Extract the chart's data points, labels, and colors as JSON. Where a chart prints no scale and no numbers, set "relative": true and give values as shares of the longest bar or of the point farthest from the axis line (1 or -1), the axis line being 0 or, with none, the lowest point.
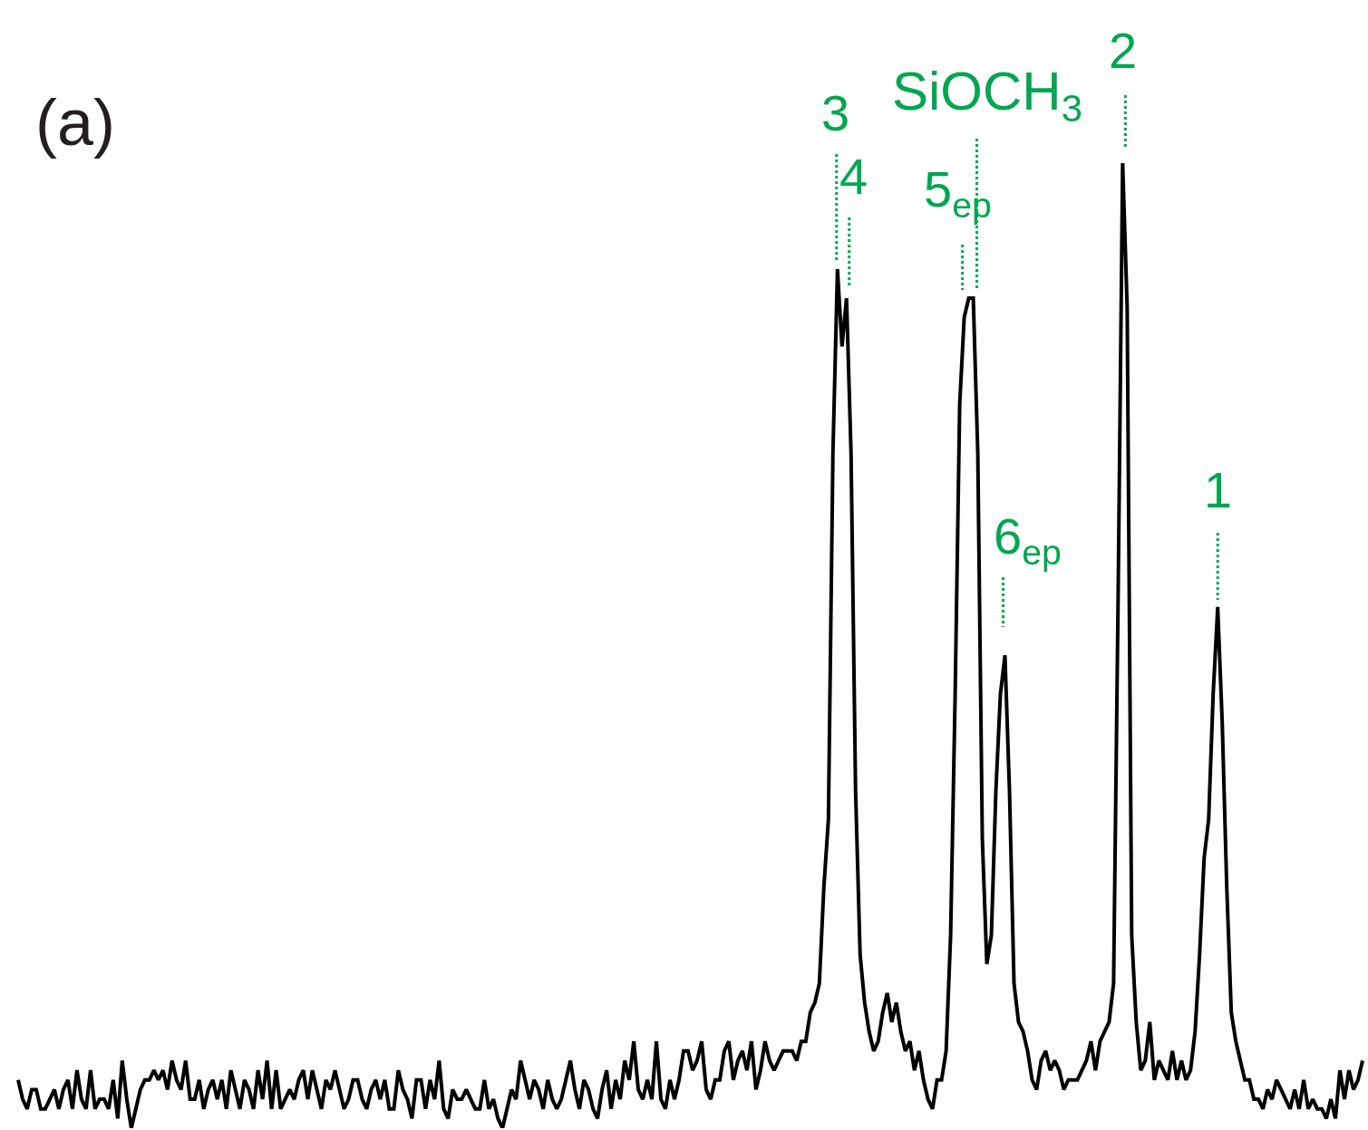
{
  "chart_data": {
    "type": "line",
    "relative": true,
    "categories": [
      null,
      null,
      null,
      null,
      null,
      null,
      null,
      null,
      null,
      null,
      null,
      null,
      null,
      null,
      null,
      null,
      null,
      null,
      null,
      null,
      null,
      null,
      null,
      null,
      null,
      null,
      null,
      null,
      null,
      null,
      null,
      null,
      null,
      null,
      null,
      null,
      null,
      null,
      null,
      null,
      null,
      null,
      null,
      null,
      null,
      null,
      null,
      null,
      null,
      null,
      null,
      null,
      null,
      null,
      null,
      null,
      null,
      null,
      null,
      null,
      null,
      null,
      null,
      null,
      null,
      null,
      null,
      null,
      null,
      null,
      null,
      null,
      null,
      null,
      null,
      null,
      null,
      null,
      null,
      null,
      null,
      null,
      null,
      null,
      null,
      null,
      null,
      null,
      null,
      null,
      null,
      null,
      null,
      null,
      null,
      null,
      null,
      null,
      null,
      null,
      null,
      null,
      null,
      null,
      null,
      null,
      null,
      null,
      null,
      null,
      null,
      null,
      null,
      null,
      null,
      null,
      null,
      null,
      null,
      null,
      null,
      null,
      null,
      null,
      null,
      null,
      null,
      null,
      null,
      null,
      null,
      null,
      null,
      null,
      null,
      null,
      null,
      null,
      null,
      null,
      null,
      null,
      null,
      null,
      null,
      null,
      null,
      null,
      null,
      null,
      null,
      null,
      null,
      null,
      null,
      null,
      null,
      null,
      null,
      null,
      null,
      null,
      null,
      null,
      null,
      null,
      null,
      null,
      null,
      null,
      null,
      null,
      null,
      null,
      null,
      null,
      null,
      null,
      null,
      null,
      null,
      null,
      null,
      null,
      null,
      null,
      null,
      null,
      null,
      null,
      null,
      null,
      null,
      null,
      null,
      null,
      null,
      null,
      null,
      null,
      null,
      null,
      null,
      null,
      null,
      null,
      null,
      null,
      null,
      null,
      null,
      null,
      null,
      null,
      null,
      null,
      null,
      null,
      null,
      null,
      null,
      null,
      null,
      null,
      null,
      null,
      null,
      null,
      null,
      null,
      null,
      null,
      null,
      null,
      null,
      null,
      null,
      null,
      null,
      null,
      null,
      null,
      null,
      null,
      null,
      null,
      null,
      null,
      null,
      null,
      null,
      null,
      null,
      null,
      null,
      null,
      null,
      null,
      null,
      null,
      null,
      null,
      null,
      null,
      null,
      null,
      null,
      null,
      null,
      null,
      null,
      null,
      null,
      null,
      null,
      null,
      null,
      null,
      null,
      null,
      null,
      null,
      null,
      null,
      null,
      null,
      null,
      null,
      null,
      null,
      null,
      null,
      null,
      null,
      null,
      null,
      null,
      null
    ],
    "series": [
      {
        "color": "#000000",
        "values": [
          0.05,
          0.03,
          0.02,
          0.04,
          0.04,
          0.02,
          0.02,
          0.03,
          0.04,
          0.02,
          0.04,
          0.05,
          0.02,
          0.06,
          0.03,
          0.02,
          0.06,
          0.02,
          0.03,
          0.03,
          0.02,
          0.05,
          0.01,
          0.07,
          0.03,
          0.0,
          0.02,
          0.04,
          0.05,
          0.05,
          0.06,
          0.05,
          0.06,
          0.04,
          0.07,
          0.05,
          0.04,
          0.07,
          0.03,
          0.03,
          0.05,
          0.02,
          0.04,
          0.05,
          0.03,
          0.05,
          0.02,
          0.06,
          0.04,
          0.02,
          0.05,
          0.04,
          0.02,
          0.06,
          0.03,
          0.07,
          0.02,
          0.06,
          0.02,
          0.03,
          0.04,
          0.03,
          0.05,
          0.06,
          0.03,
          0.06,
          0.04,
          0.02,
          0.05,
          0.04,
          0.06,
          0.04,
          0.02,
          0.03,
          0.05,
          0.05,
          0.03,
          0.02,
          0.04,
          0.05,
          0.03,
          0.05,
          0.02,
          0.02,
          0.06,
          0.04,
          0.03,
          0.01,
          0.05,
          0.05,
          0.02,
          0.05,
          0.03,
          0.07,
          0.02,
          0.01,
          0.04,
          0.03,
          0.03,
          0.04,
          0.03,
          0.02,
          0.02,
          0.05,
          0.02,
          0.03,
          0.01,
          0.0,
          0.02,
          0.04,
          0.03,
          0.07,
          0.05,
          0.03,
          0.05,
          0.04,
          0.02,
          0.05,
          0.03,
          0.02,
          0.03,
          0.05,
          0.07,
          0.04,
          0.02,
          0.05,
          0.04,
          0.02,
          0.01,
          0.04,
          0.06,
          0.02,
          0.05,
          0.03,
          0.07,
          0.05,
          0.09,
          0.04,
          0.03,
          0.05,
          0.03,
          0.09,
          0.03,
          0.02,
          0.05,
          0.03,
          0.05,
          0.08,
          0.08,
          0.06,
          0.07,
          0.09,
          0.04,
          0.03,
          0.05,
          0.05,
          0.08,
          0.09,
          0.05,
          0.07,
          0.08,
          0.06,
          0.09,
          0.04,
          0.06,
          0.09,
          0.07,
          0.06,
          0.07,
          0.08,
          0.08,
          0.08,
          0.07,
          0.09,
          0.09,
          0.12,
          0.13,
          0.15,
          0.25,
          0.32,
          0.7,
          0.89,
          0.81,
          0.86,
          0.7,
          0.35,
          0.18,
          0.13,
          0.1,
          0.08,
          0.09,
          0.12,
          0.14,
          0.11,
          0.13,
          0.1,
          0.08,
          0.09,
          0.06,
          0.08,
          0.05,
          0.03,
          0.02,
          0.05,
          0.05,
          0.08,
          0.2,
          0.45,
          0.75,
          0.84,
          0.86,
          0.86,
          0.7,
          0.3,
          0.17,
          0.2,
          0.35,
          0.45,
          0.49,
          0.35,
          0.15,
          0.11,
          0.1,
          0.08,
          0.05,
          0.04,
          0.07,
          0.08,
          0.06,
          0.07,
          0.06,
          0.04,
          0.05,
          0.05,
          0.05,
          0.06,
          0.07,
          0.09,
          0.06,
          0.09,
          0.1,
          0.11,
          0.15,
          0.55,
          1.0,
          0.85,
          0.2,
          0.11,
          0.06,
          0.07,
          0.11,
          0.05,
          0.07,
          0.06,
          0.05,
          0.08,
          0.05,
          0.07,
          0.05,
          0.06,
          0.1,
          0.18,
          0.28,
          0.32,
          0.45,
          0.54,
          0.42,
          0.25,
          0.12,
          0.09,
          0.07,
          0.05,
          0.05,
          0.03,
          0.03,
          0.02,
          0.04,
          0.03,
          0.05,
          0.04,
          0.03,
          0.02,
          0.04,
          0.02,
          0.05,
          0.02,
          0.03,
          0.02,
          0.02,
          0.01,
          0.03,
          0.01,
          0.06,
          0.03,
          0.06,
          0.04,
          0.05,
          0.07
        ]
      }
    ],
    "annotations": [
      "(a)",
      "3",
      "4",
      "SiOCH$_{3}$",
      "5$_{ep}$",
      "6$_{ep}$",
      "2",
      "1"
    ]
  }
}
